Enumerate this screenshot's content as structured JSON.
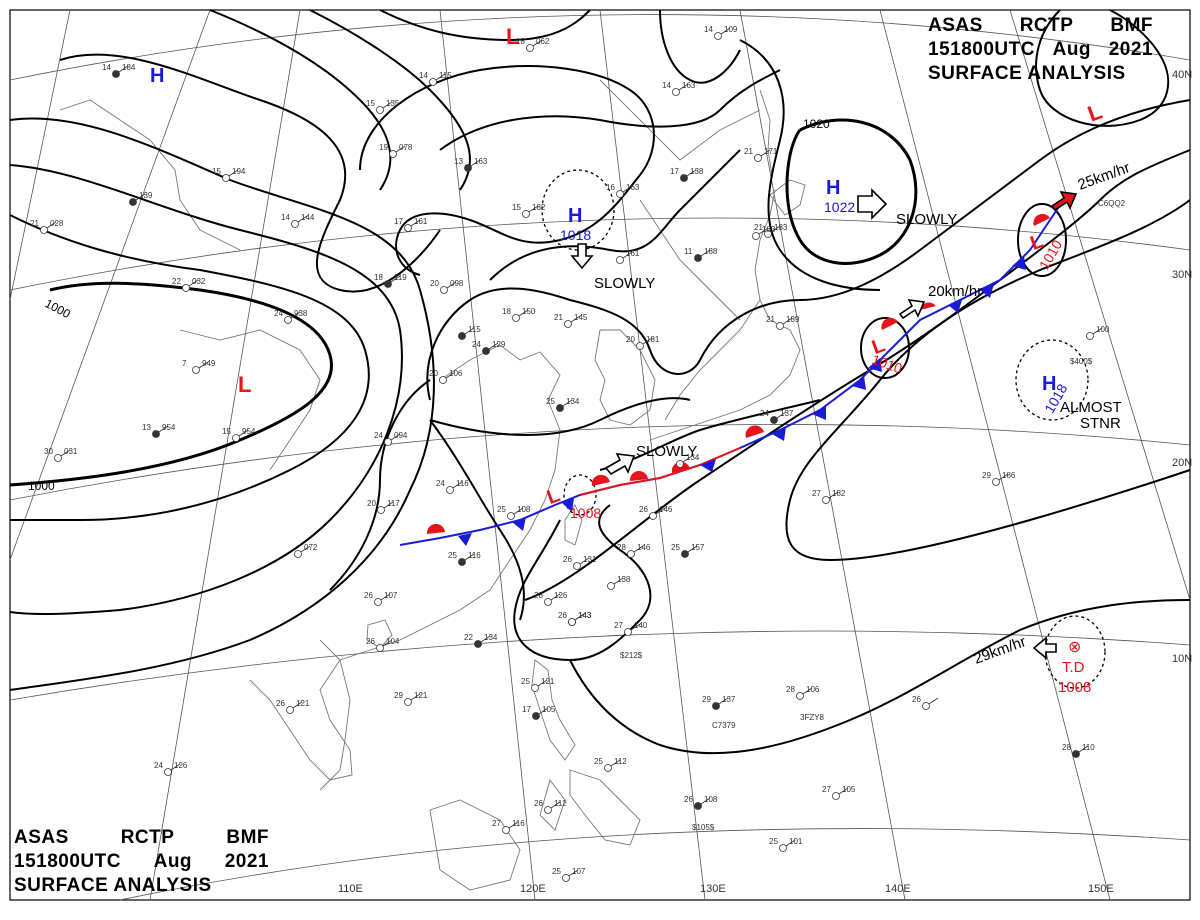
{
  "header": {
    "agency": "ASAS",
    "station": "RCTP",
    "code": "BMF",
    "time": "151800UTC",
    "month": "Aug",
    "year": "2021",
    "product": "SURFACE ANALYSIS"
  },
  "graticule": {
    "lat_labels": [
      "40N",
      "30N",
      "20N",
      "10N"
    ],
    "lon_labels": [
      "110E",
      "120E",
      "130E",
      "140E",
      "150E"
    ]
  },
  "isobar_labels": {
    "p1000": "1000",
    "p1000b": "1000",
    "p1020": "1020"
  },
  "systems": {
    "lows": [
      {
        "symbol": "L",
        "pressure": ""
      },
      {
        "symbol": "L",
        "pressure": ""
      },
      {
        "symbol": "L",
        "pressure": ""
      },
      {
        "symbol": "L",
        "pressure": "1008"
      },
      {
        "symbol": "L",
        "pressure": "1010"
      },
      {
        "symbol": "L",
        "pressure": "1010"
      }
    ],
    "highs": [
      {
        "symbol": "H",
        "pressure": ""
      },
      {
        "symbol": "H",
        "pressure": "1018"
      },
      {
        "symbol": "H",
        "pressure": "1022"
      },
      {
        "symbol": "H",
        "pressure": "1018"
      }
    ],
    "td": {
      "label": "T.D",
      "pressure": "1008",
      "symbol": "⊗"
    }
  },
  "motion": {
    "m1": "SLOWLY",
    "m2": "SLOWLY",
    "m3": "SLOWLY",
    "m4": "20km/hr",
    "m5": "25km/hr",
    "m6_line1": "ALMOST",
    "m6_line2": "STNR",
    "m7": "29km/hr"
  },
  "colors": {
    "low": "#e8141b",
    "high": "#1a1ad9",
    "front_cold": "#1a1ad9",
    "front_warm": "#e8141b",
    "isobar": "#000000"
  },
  "stations": [
    {
      "t": "14",
      "p": "184"
    },
    {
      "t": "14",
      "p": "115"
    },
    {
      "t": "15",
      "p": "135"
    },
    {
      "t": "19",
      "p": "078"
    },
    {
      "t": "13",
      "p": "163"
    },
    {
      "t": "15",
      "p": "194"
    },
    {
      "t": "15",
      "p": "182"
    },
    {
      "t": "16",
      "p": "163"
    },
    {
      "t": "",
      "p": "139"
    },
    {
      "t": "21",
      "p": "028"
    },
    {
      "t": "14",
      "p": "144"
    },
    {
      "t": "17",
      "p": "161"
    },
    {
      "t": "18",
      "p": "119"
    },
    {
      "t": "20",
      "p": "098"
    },
    {
      "t": "22",
      "p": "032"
    },
    {
      "t": "24",
      "p": "938"
    },
    {
      "t": "",
      "p": "115"
    },
    {
      "t": "18",
      "p": "150"
    },
    {
      "t": "21",
      "p": "145"
    },
    {
      "t": "",
      "p": "161"
    },
    {
      "t": "24",
      "p": "129"
    },
    {
      "t": "20",
      "p": "181"
    },
    {
      "t": "20",
      "p": "106"
    },
    {
      "t": "7",
      "p": "949"
    },
    {
      "t": "13",
      "p": "954"
    },
    {
      "t": "15",
      "p": "954"
    },
    {
      "t": "24",
      "p": "094"
    },
    {
      "t": "30",
      "p": "031"
    },
    {
      "t": "25",
      "p": "134"
    },
    {
      "t": "24",
      "p": "116"
    },
    {
      "t": "20",
      "p": "117"
    },
    {
      "t": "25",
      "p": "108"
    },
    {
      "t": "25",
      "p": "116"
    },
    {
      "t": "",
      "p": "072"
    },
    {
      "t": "26",
      "p": "131"
    },
    {
      "t": "28",
      "p": "146"
    },
    {
      "t": "25",
      "p": "157"
    },
    {
      "t": "26",
      "p": "146"
    },
    {
      "t": "",
      "p": "138"
    },
    {
      "t": "28",
      "p": "126"
    },
    {
      "t": "26",
      "p": "143"
    },
    {
      "t": "27",
      "p": "140"
    },
    {
      "t": "26",
      "p": "107"
    },
    {
      "t": "26",
      "p": "104"
    },
    {
      "t": "22",
      "p": "134"
    },
    {
      "t": "26",
      "p": "121"
    },
    {
      "t": "29",
      "p": "121"
    },
    {
      "t": "25",
      "p": "121"
    },
    {
      "t": "17",
      "p": "105"
    },
    {
      "t": "25",
      "p": "112"
    },
    {
      "t": "26",
      "p": "112"
    },
    {
      "t": "27",
      "p": "116"
    },
    {
      "t": "26",
      "p": "108"
    },
    {
      "t": "25",
      "p": "101"
    },
    {
      "t": "25",
      "p": "107"
    },
    {
      "t": "24",
      "p": "126"
    },
    {
      "t": "29",
      "p": "137"
    },
    {
      "t": "28",
      "p": "106"
    },
    {
      "t": "26",
      "p": ""
    },
    {
      "t": "27",
      "p": "105"
    },
    {
      "t": "28",
      "p": "110"
    },
    {
      "t": "27",
      "p": "182"
    },
    {
      "t": "29",
      "p": "186"
    },
    {
      "t": "",
      "p": "100"
    },
    {
      "t": "17",
      "p": "138"
    },
    {
      "t": "14",
      "p": "163"
    },
    {
      "t": "14",
      "p": "109"
    },
    {
      "t": "18",
      "p": "062"
    },
    {
      "t": "11",
      "p": "188"
    },
    {
      "t": "21",
      "p": "183"
    },
    {
      "t": "21",
      "p": "171"
    },
    {
      "t": "21",
      "p": "189"
    },
    {
      "t": "24",
      "p": "137"
    },
    {
      "t": "",
      "p": "134"
    },
    {
      "t": "",
      "p": "143"
    },
    {
      "t": "",
      "p": "183"
    }
  ],
  "ship_ids": [
    "C6QQ2",
    "C7379",
    "3FZY8",
    "$212$",
    "$400$",
    "$105$"
  ]
}
